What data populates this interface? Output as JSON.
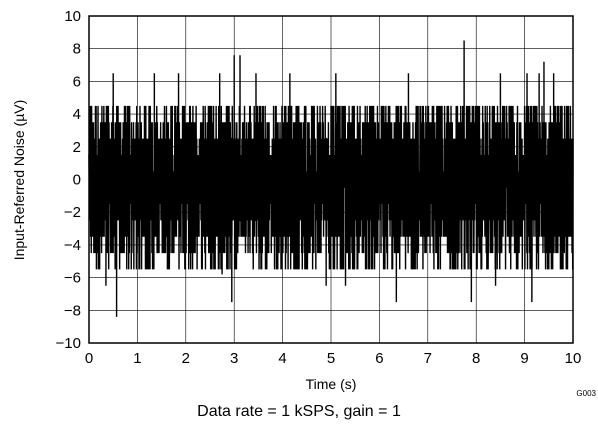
{
  "chart_data": {
    "type": "line",
    "xlabel": "Time (s)",
    "ylabel": "Input-Referred Noise (µV)",
    "xlim": [
      0,
      10
    ],
    "ylim": [
      -10,
      10
    ],
    "x_ticks": [
      0,
      1,
      2,
      3,
      4,
      5,
      6,
      7,
      8,
      9,
      10
    ],
    "y_ticks": [
      -10,
      -8,
      -6,
      -4,
      -2,
      0,
      2,
      4,
      6,
      8,
      10
    ],
    "x_tick_labels": [
      "0",
      "1",
      "2",
      "3",
      "4",
      "5",
      "6",
      "7",
      "8",
      "9",
      "10"
    ],
    "y_tick_labels": [
      "−10",
      "−8",
      "−6",
      "−4",
      "−2",
      "0",
      "2",
      "4",
      "6",
      "8",
      "10"
    ],
    "grid": true,
    "series": [
      {
        "color": "#000000",
        "sample_rate_sps": 1000,
        "typical_min": -5.5,
        "typical_max": 4.5,
        "peaks": [
          {
            "x": 0.5,
            "y": 6.5
          },
          {
            "x": 0.57,
            "y": -8.4
          },
          {
            "x": 0.35,
            "y": -6.5
          },
          {
            "x": 1.35,
            "y": 6.5
          },
          {
            "x": 1.85,
            "y": 6.5
          },
          {
            "x": 2.7,
            "y": 6.5
          },
          {
            "x": 2.75,
            "y": -5.8
          },
          {
            "x": 3.0,
            "y": 7.6
          },
          {
            "x": 3.12,
            "y": 7.6
          },
          {
            "x": 2.95,
            "y": -7.5
          },
          {
            "x": 3.45,
            "y": 6.5
          },
          {
            "x": 4.15,
            "y": 6.5
          },
          {
            "x": 5.1,
            "y": 6.5
          },
          {
            "x": 4.9,
            "y": -6.5
          },
          {
            "x": 5.3,
            "y": -6.5
          },
          {
            "x": 6.35,
            "y": -7.5
          },
          {
            "x": 6.6,
            "y": 6.5
          },
          {
            "x": 7.75,
            "y": 8.5
          },
          {
            "x": 7.9,
            "y": -7.5
          },
          {
            "x": 8.5,
            "y": 6.5
          },
          {
            "x": 8.4,
            "y": -6.5
          },
          {
            "x": 9.05,
            "y": 6.5
          },
          {
            "x": 9.3,
            "y": 6.5
          },
          {
            "x": 9.4,
            "y": 7.2
          },
          {
            "x": 9.15,
            "y": -7.5
          },
          {
            "x": 9.6,
            "y": 6.5
          }
        ]
      }
    ]
  },
  "figure_id": "G003",
  "caption": "Data rate = 1 kSPS, gain = 1"
}
